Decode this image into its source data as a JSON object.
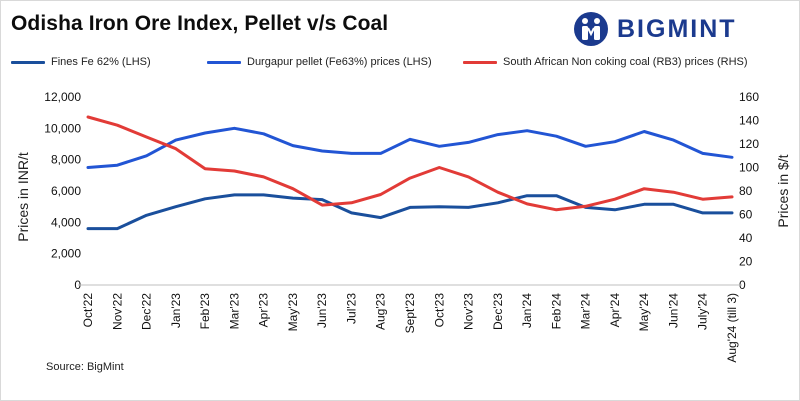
{
  "header": {
    "title": "Odisha Iron Ore Index, Pellet v/s Coal",
    "brand": "BIGMINT"
  },
  "footer": {
    "source": "Source: BigMint"
  },
  "colors": {
    "fines": "#1a4f9c",
    "pellet": "#2255d4",
    "coal": "#e23b37",
    "brand": "#1b3a8e"
  },
  "chart_data": {
    "type": "line",
    "title": "Odisha Iron Ore Index, Pellet v/s Coal",
    "categories": [
      "Oct'22",
      "Nov'22",
      "Dec'22",
      "Jan'23",
      "Feb'23",
      "Mar'23",
      "Apr'23",
      "May'23",
      "Jun'23",
      "Jul'23",
      "Aug'23",
      "Sept'23",
      "Oct'23",
      "Nov'23",
      "Dec'23",
      "Jan'24",
      "Feb'24",
      "Mar'24",
      "Apr'24",
      "May'24",
      "Jun'24",
      "July'24",
      "Aug'24 (till 3)"
    ],
    "ylabel": "Prices in INR/t",
    "y2label": "Prices in $/t",
    "ylim": [
      0,
      12000
    ],
    "y2lim": [
      0,
      160
    ],
    "yticks": [
      0,
      2000,
      4000,
      6000,
      8000,
      10000,
      12000
    ],
    "yticklabels": [
      "0",
      "2,000",
      "4,000",
      "6,000",
      "8,000",
      "10,000",
      "12,000"
    ],
    "y2ticks": [
      0,
      20,
      40,
      60,
      80,
      100,
      120,
      140,
      160
    ],
    "y2ticklabels": [
      "0",
      "20",
      "40",
      "60",
      "80",
      "100",
      "120",
      "140",
      "160"
    ],
    "grid": false,
    "legend_position": "top",
    "series": [
      {
        "name": "Fines Fe 62% (LHS)",
        "axis": "left",
        "color_key": "fines",
        "values": [
          3600,
          3600,
          4450,
          5000,
          5500,
          5750,
          5750,
          5550,
          5450,
          4600,
          4300,
          4950,
          5000,
          4950,
          5250,
          5700,
          5700,
          4950,
          4800,
          5150,
          5150,
          4600,
          4600
        ]
      },
      {
        "name": "Durgapur pellet (Fe63%) prices (LHS)",
        "axis": "left",
        "color_key": "pellet",
        "values": [
          7500,
          7650,
          8250,
          9250,
          9700,
          10000,
          9650,
          8900,
          8550,
          8400,
          8400,
          9300,
          8850,
          9100,
          9600,
          9850,
          9500,
          8850,
          9150,
          9800,
          9250,
          8400,
          8150
        ]
      },
      {
        "name": "South African Non coking coal (RB3) prices (RHS)",
        "axis": "right",
        "color_key": "coal",
        "values": [
          143,
          136,
          126,
          116,
          99,
          97,
          92,
          82,
          68,
          70,
          77,
          91,
          100,
          92,
          79,
          69,
          64,
          67,
          73,
          82,
          79,
          73,
          75
        ]
      }
    ]
  }
}
